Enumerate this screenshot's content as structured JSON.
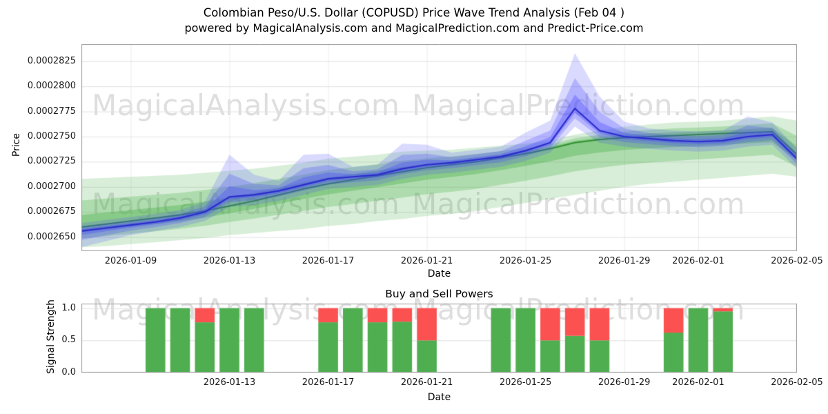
{
  "title": {
    "line1": "Colombian Peso/U.S. Dollar (COPUSD) Price Wave Trend Analysis (Feb 04 )",
    "line2": "powered by MagicalAnalysis.com and MagicalPrediction.com and Predict-Price.com"
  },
  "watermarks": {
    "analysis": "MagicalAnalysis.com",
    "prediction": "MagicalPrediction.com"
  },
  "chart_data": [
    {
      "type": "area",
      "name": "price_wave_trend",
      "xlabel": "Date",
      "ylabel": "Price",
      "ylim": [
        0.0002636,
        0.0002842
      ],
      "x_dates": [
        "2026-01-07",
        "2026-01-08",
        "2026-01-09",
        "2026-01-10",
        "2026-01-11",
        "2026-01-12",
        "2026-01-13",
        "2026-01-14",
        "2026-01-15",
        "2026-01-16",
        "2026-01-17",
        "2026-01-18",
        "2026-01-19",
        "2026-01-20",
        "2026-01-21",
        "2026-01-22",
        "2026-01-23",
        "2026-01-24",
        "2026-01-25",
        "2026-01-26",
        "2026-01-27",
        "2026-01-28",
        "2026-01-29",
        "2026-01-30",
        "2026-01-31",
        "2026-02-01",
        "2026-02-02",
        "2026-02-03",
        "2026-02-04",
        "2026-02-05"
      ],
      "x_ticks": [
        "2026-01-09",
        "2026-01-13",
        "2026-01-17",
        "2026-01-21",
        "2026-01-25",
        "2026-01-29",
        "2026-02-01",
        "2026-02-05"
      ],
      "y_ticks": [
        {
          "v": 0.000265,
          "label": "0.0002650"
        },
        {
          "v": 0.0002675,
          "label": "0.0002675"
        },
        {
          "v": 0.00027,
          "label": "0.0002700"
        },
        {
          "v": 0.0002725,
          "label": "0.0002725"
        },
        {
          "v": 0.000275,
          "label": "0.0002750"
        },
        {
          "v": 0.0002775,
          "label": "0.0002775"
        },
        {
          "v": 0.00028,
          "label": "0.0002800"
        },
        {
          "v": 0.0002825,
          "label": "0.0002825"
        }
      ],
      "colors": {
        "wave_fill": "#3aa83a",
        "trend_line": "#2f8f2f",
        "price_fill": "#4848ff",
        "price_line": "#2a2acc"
      },
      "series": {
        "wave_trend": [
          0.000266,
          0.0002663,
          0.0002666,
          0.0002669,
          0.0002672,
          0.0002676,
          0.0002681,
          0.0002686,
          0.0002692,
          0.0002698,
          0.0002703,
          0.0002707,
          0.0002711,
          0.0002715,
          0.0002719,
          0.0002722,
          0.0002725,
          0.0002729,
          0.0002733,
          0.0002738,
          0.0002744,
          0.0002747,
          0.0002749,
          0.000275,
          0.0002751,
          0.0002752,
          0.0002753,
          0.0002754,
          0.0002755,
          0.0002732
        ],
        "wave_upper": [
          0.0002708,
          0.0002709,
          0.000271,
          0.0002711,
          0.0002712,
          0.0002714,
          0.0002716,
          0.0002718,
          0.0002721,
          0.0002724,
          0.0002728,
          0.000273,
          0.0002732,
          0.0002735,
          0.0002736,
          0.0002737,
          0.0002739,
          0.0002741,
          0.0002743,
          0.0002746,
          0.0002752,
          0.0002756,
          0.000276,
          0.0002762,
          0.0002764,
          0.0002765,
          0.0002766,
          0.0002768,
          0.000277,
          0.0002766
        ],
        "wave_lower": [
          0.000264,
          0.0002641,
          0.0002643,
          0.0002645,
          0.0002647,
          0.0002649,
          0.0002652,
          0.0002654,
          0.0002656,
          0.0002658,
          0.0002661,
          0.0002663,
          0.0002666,
          0.0002668,
          0.0002671,
          0.0002673,
          0.0002676,
          0.000268,
          0.0002684,
          0.0002688,
          0.0002692,
          0.0002696,
          0.00027,
          0.0002703,
          0.0002705,
          0.0002707,
          0.0002709,
          0.0002711,
          0.0002713,
          0.000271
        ],
        "price": [
          0.0002656,
          0.0002659,
          0.0002662,
          0.0002665,
          0.0002669,
          0.0002675,
          0.000269,
          0.0002692,
          0.0002696,
          0.0002702,
          0.0002708,
          0.000271,
          0.0002712,
          0.0002718,
          0.0002722,
          0.0002724,
          0.0002727,
          0.000273,
          0.0002736,
          0.0002744,
          0.0002778,
          0.0002756,
          0.000275,
          0.0002748,
          0.0002746,
          0.0002745,
          0.0002746,
          0.000275,
          0.0002752,
          0.0002728
        ],
        "price_upper": [
          0.0002664,
          0.0002667,
          0.000267,
          0.0002673,
          0.0002677,
          0.0002685,
          0.0002732,
          0.0002712,
          0.0002706,
          0.0002732,
          0.0002733,
          0.000272,
          0.0002722,
          0.0002743,
          0.0002742,
          0.0002734,
          0.0002737,
          0.000274,
          0.0002754,
          0.0002766,
          0.0002833,
          0.000279,
          0.0002765,
          0.0002758,
          0.0002756,
          0.0002755,
          0.0002756,
          0.000277,
          0.0002764,
          0.0002738
        ],
        "price_lower": [
          0.000264,
          0.0002646,
          0.0002652,
          0.0002656,
          0.000266,
          0.0002666,
          0.000268,
          0.0002682,
          0.0002686,
          0.0002692,
          0.0002698,
          0.00027,
          0.0002702,
          0.0002708,
          0.0002712,
          0.0002714,
          0.0002717,
          0.000272,
          0.0002726,
          0.0002734,
          0.000276,
          0.0002744,
          0.000274,
          0.0002738,
          0.0002736,
          0.0002735,
          0.0002736,
          0.000274,
          0.0002742,
          0.0002718
        ]
      }
    },
    {
      "type": "bar",
      "name": "buy_sell_powers",
      "title": "Buy and Sell Powers",
      "xlabel": "Date",
      "ylabel": "Signal Strength",
      "ylim": [
        0,
        1.07
      ],
      "x_ticks": [
        "2026-01-13",
        "2026-01-17",
        "2026-01-21",
        "2026-01-25",
        "2026-01-29",
        "2026-02-01",
        "2026-02-05"
      ],
      "y_ticks": [
        {
          "v": 0.0,
          "label": "0.0"
        },
        {
          "v": 0.5,
          "label": "0.5"
        },
        {
          "v": 1.0,
          "label": "1.0"
        }
      ],
      "colors": {
        "buy": "#4fae50",
        "sell": "#fb5151"
      },
      "bars": [
        {
          "date": "2026-01-10",
          "buy": 1.0,
          "sell": 0.0
        },
        {
          "date": "2026-01-11",
          "buy": 1.0,
          "sell": 0.0
        },
        {
          "date": "2026-01-12",
          "buy": 0.78,
          "sell": 0.22
        },
        {
          "date": "2026-01-13",
          "buy": 1.0,
          "sell": 0.0
        },
        {
          "date": "2026-01-14",
          "buy": 1.0,
          "sell": 0.0
        },
        {
          "date": "2026-01-17",
          "buy": 0.78,
          "sell": 0.22
        },
        {
          "date": "2026-01-18",
          "buy": 1.0,
          "sell": 0.0
        },
        {
          "date": "2026-01-19",
          "buy": 0.78,
          "sell": 0.22
        },
        {
          "date": "2026-01-20",
          "buy": 0.79,
          "sell": 0.21
        },
        {
          "date": "2026-01-21",
          "buy": 0.5,
          "sell": 0.5
        },
        {
          "date": "2026-01-24",
          "buy": 1.0,
          "sell": 0.0
        },
        {
          "date": "2026-01-25",
          "buy": 1.0,
          "sell": 0.0
        },
        {
          "date": "2026-01-26",
          "buy": 0.5,
          "sell": 0.5
        },
        {
          "date": "2026-01-27",
          "buy": 0.57,
          "sell": 0.43
        },
        {
          "date": "2026-01-28",
          "buy": 0.5,
          "sell": 0.5
        },
        {
          "date": "2026-01-31",
          "buy": 0.62,
          "sell": 0.38
        },
        {
          "date": "2026-02-01",
          "buy": 1.0,
          "sell": 0.0
        },
        {
          "date": "2026-02-02",
          "buy": 0.95,
          "sell": 0.05
        }
      ]
    }
  ]
}
